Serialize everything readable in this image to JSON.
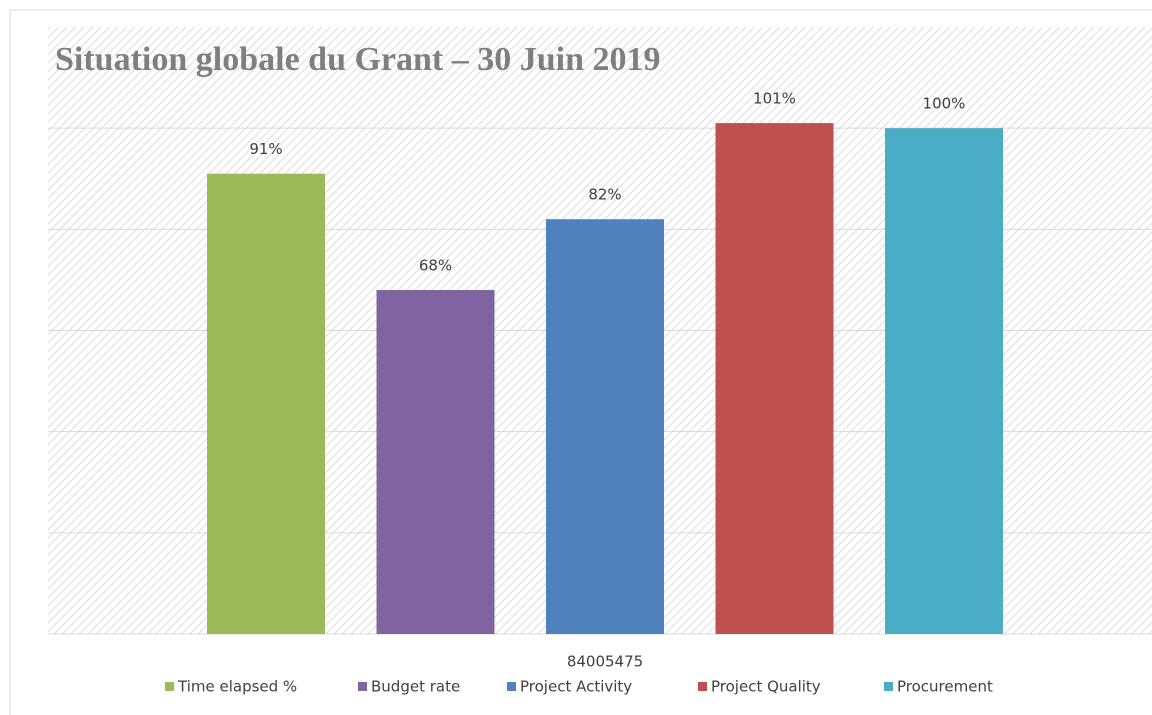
{
  "chart_data": {
    "type": "bar",
    "title": "Situation globale du Grant – 30 Juin 2019",
    "categories": [
      "84005475"
    ],
    "series": [
      {
        "name": "Time elapsed %",
        "color": "#9bbb59",
        "values": [
          91
        ],
        "value_labels": [
          "91%"
        ]
      },
      {
        "name": "Budget rate",
        "color": "#8064a2",
        "values": [
          68
        ],
        "value_labels": [
          "68%"
        ]
      },
      {
        "name": "Project Activity",
        "color": "#4f81bd",
        "values": [
          82
        ],
        "value_labels": [
          "82%"
        ]
      },
      {
        "name": "Project Quality",
        "color": "#c0504d",
        "values": [
          101
        ],
        "value_labels": [
          "101%"
        ]
      },
      {
        "name": "Procurement",
        "color": "#4bacc6",
        "values": [
          100
        ],
        "value_labels": [
          "100%"
        ]
      }
    ],
    "ylim": [
      0,
      120
    ],
    "yticks": [
      0,
      20,
      40,
      60,
      80,
      100
    ],
    "grid": true,
    "legend": "bottom"
  }
}
